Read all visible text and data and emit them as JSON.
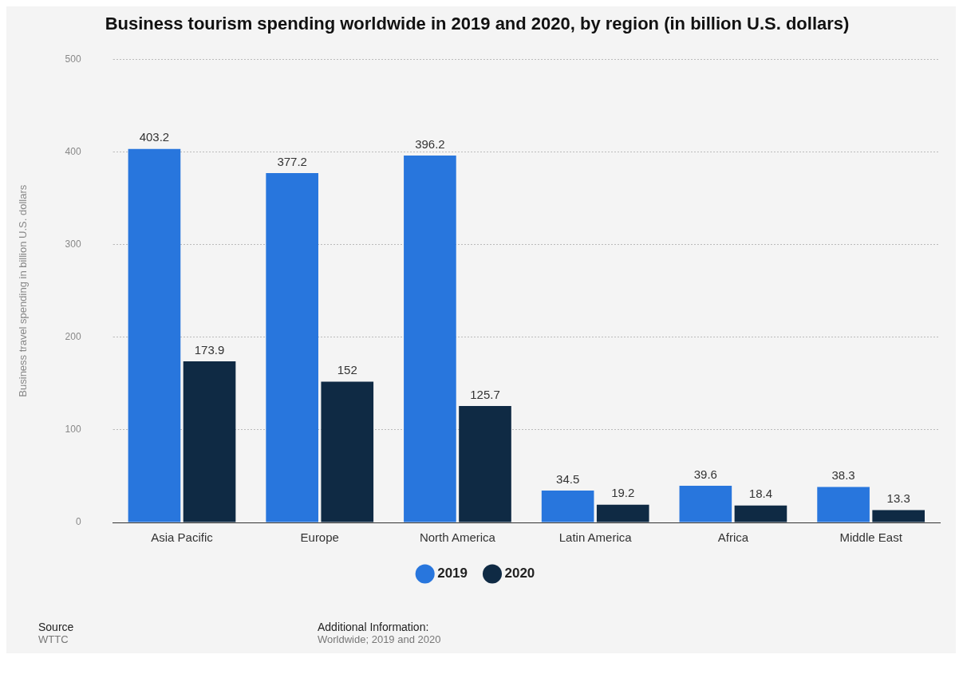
{
  "chart_data": {
    "type": "bar",
    "title": "Business tourism spending worldwide in 2019 and 2020, by region (in billion U.S. dollars)",
    "ylabel": "Business travel spending in billion U.S. dollars",
    "categories": [
      "Asia Pacific",
      "Europe",
      "North America",
      "Latin America",
      "Africa",
      "Middle East"
    ],
    "series": [
      {
        "name": "2019",
        "color": "#2876dd",
        "values": [
          403.2,
          377.2,
          396.2,
          34.5,
          39.6,
          38.3
        ]
      },
      {
        "name": "2020",
        "color": "#0f2a44",
        "values": [
          173.9,
          152,
          125.7,
          19.2,
          18.4,
          13.3
        ]
      }
    ],
    "ylim": [
      0,
      500
    ],
    "yticks": [
      0,
      100,
      200,
      300,
      400,
      500
    ],
    "grid": "y",
    "legend": "bottom",
    "data_labels": true,
    "annotations": [
      "Source",
      "WTTC",
      "Additional Information:",
      "Worldwide; 2019 and 2020"
    ]
  }
}
